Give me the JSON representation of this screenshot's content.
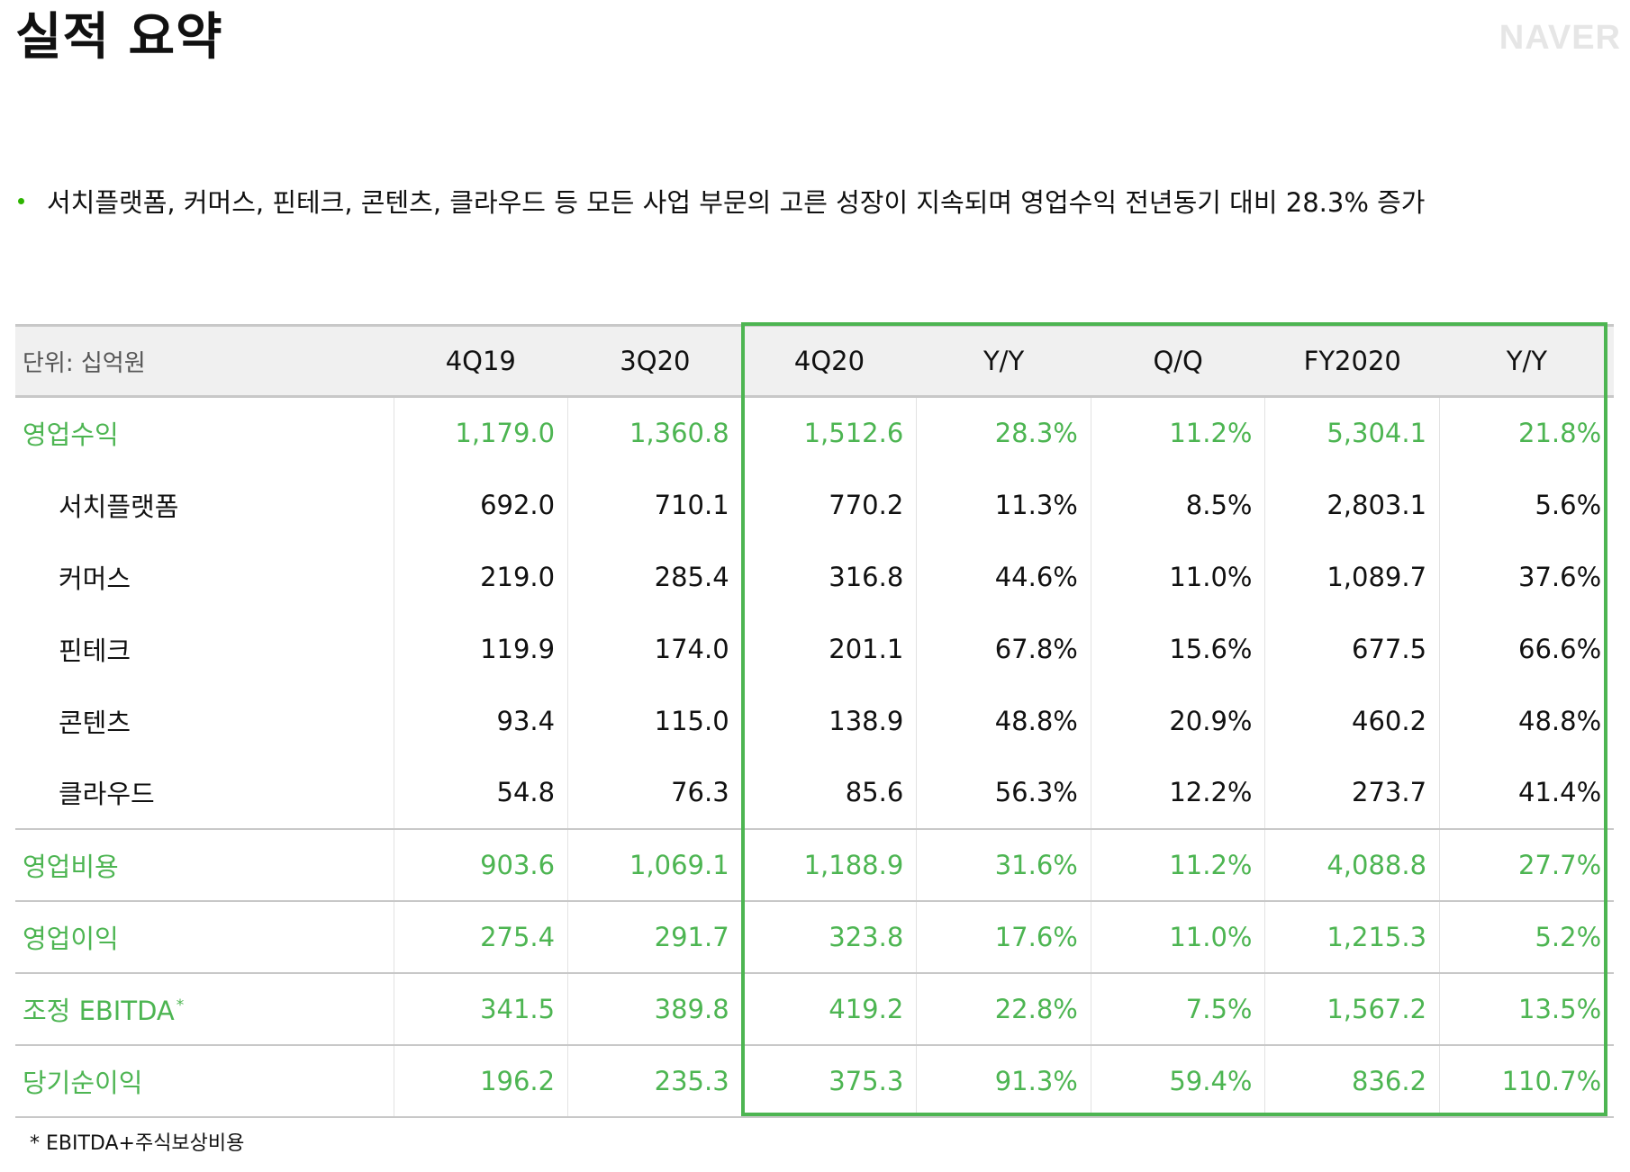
{
  "title": "실적 요약",
  "brand": "NAVER",
  "bullet": "서치플랫폼, 커머스, 핀테크, 콘텐츠, 클라우드 등 모든 사업 부문의 고른 성장이 지속되며 영업수익 전년동기 대비 28.3% 증가",
  "accent_color": "#4db552",
  "bullet_color": "#2db400",
  "table": {
    "unit_label": "단위: 십억원",
    "columns": [
      "4Q19",
      "3Q20",
      "4Q20",
      "Y/Y",
      "Q/Q",
      "FY2020",
      "Y/Y"
    ],
    "rows": [
      {
        "label": "영업수익",
        "values": [
          "1,179.0",
          "1,360.8",
          "1,512.6",
          "28.3%",
          "11.2%",
          "5,304.1",
          "21.8%"
        ]
      },
      {
        "label": "서치플랫폼",
        "values": [
          "692.0",
          "710.1",
          "770.2",
          "11.3%",
          "8.5%",
          "2,803.1",
          "5.6%"
        ]
      },
      {
        "label": "커머스",
        "values": [
          "219.0",
          "285.4",
          "316.8",
          "44.6%",
          "11.0%",
          "1,089.7",
          "37.6%"
        ]
      },
      {
        "label": "핀테크",
        "values": [
          "119.9",
          "174.0",
          "201.1",
          "67.8%",
          "15.6%",
          "677.5",
          "66.6%"
        ]
      },
      {
        "label": "콘텐츠",
        "values": [
          "93.4",
          "115.0",
          "138.9",
          "48.8%",
          "20.9%",
          "460.2",
          "48.8%"
        ]
      },
      {
        "label": "클라우드",
        "values": [
          "54.8",
          "76.3",
          "85.6",
          "56.3%",
          "12.2%",
          "273.7",
          "41.4%"
        ]
      },
      {
        "label": "영업비용",
        "values": [
          "903.6",
          "1,069.1",
          "1,188.9",
          "31.6%",
          "11.2%",
          "4,088.8",
          "27.7%"
        ]
      },
      {
        "label": "영업이익",
        "values": [
          "275.4",
          "291.7",
          "323.8",
          "17.6%",
          "11.0%",
          "1,215.3",
          "5.2%"
        ]
      },
      {
        "label": "조정 EBITDA",
        "label_mark": "*",
        "values": [
          "341.5",
          "389.8",
          "419.2",
          "22.8%",
          "7.5%",
          "1,567.2",
          "13.5%"
        ]
      },
      {
        "label": "당기순이익",
        "values": [
          "196.2",
          "235.3",
          "375.3",
          "91.3%",
          "59.4%",
          "836.2",
          "110.7%"
        ]
      }
    ]
  },
  "footnote": "* EBITDA+주식보상비용"
}
